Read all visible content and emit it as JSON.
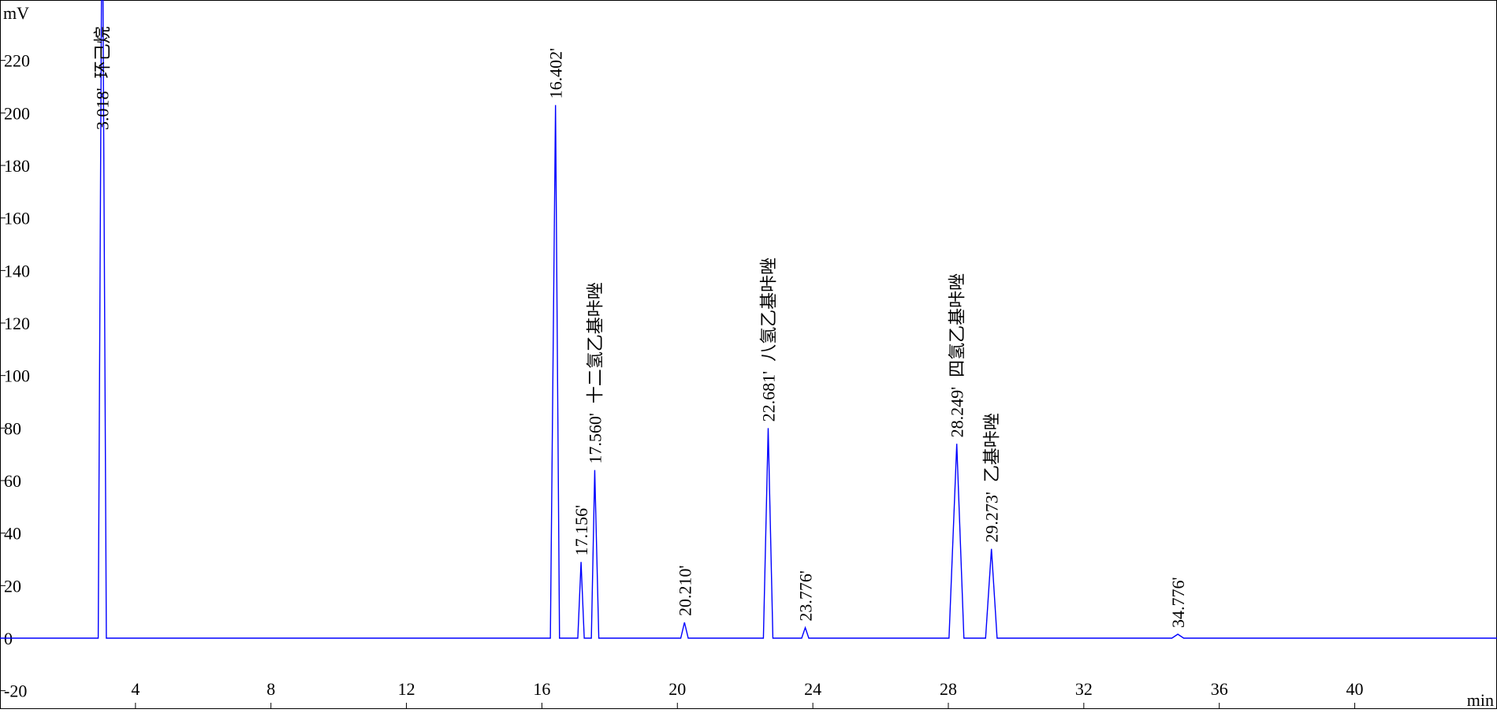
{
  "chart_data": {
    "type": "line",
    "y_label": "mV",
    "x_label": "min",
    "xlim": [
      0,
      44.2
    ],
    "ylim": [
      -27,
      243
    ],
    "xticks": [
      4,
      8,
      12,
      16,
      20,
      24,
      28,
      32,
      36,
      40
    ],
    "yticks": [
      -20,
      0,
      20,
      40,
      60,
      80,
      100,
      120,
      140,
      160,
      180,
      200,
      220
    ],
    "series": [
      {
        "color": "#0000ff",
        "x": [
          0,
          2.9,
          3.018,
          3.14,
          16.25,
          16.402,
          16.52,
          17.06,
          17.156,
          17.25,
          17.46,
          17.56,
          17.68,
          20.1,
          20.21,
          20.32,
          22.54,
          22.681,
          22.82,
          23.67,
          23.776,
          23.88,
          28.02,
          28.249,
          28.46,
          29.1,
          29.273,
          29.44,
          34.6,
          34.776,
          34.95,
          44.2
        ],
        "values": [
          0,
          0,
          300,
          0,
          0,
          203,
          0,
          0,
          29,
          0,
          0,
          64,
          0,
          0,
          6,
          0,
          0,
          80,
          0,
          0,
          4,
          0,
          0,
          74,
          0,
          0,
          34,
          0,
          0,
          1.5,
          0,
          0
        ]
      }
    ],
    "annotations": [
      {
        "x": 3.018,
        "label": "3.018'",
        "name": "环己烷"
      },
      {
        "x": 16.402,
        "label": "16.402'"
      },
      {
        "x": 17.156,
        "label": "17.156'"
      },
      {
        "x": 17.56,
        "label": "17.560'",
        "name": "十二氢乙基咔唑"
      },
      {
        "x": 20.21,
        "label": "20.210'"
      },
      {
        "x": 22.681,
        "label": "22.681'",
        "name": "八氢乙基咔唑"
      },
      {
        "x": 23.776,
        "label": "23.776'"
      },
      {
        "x": 28.249,
        "label": "28.249'",
        "name": "四氢乙基咔唑"
      },
      {
        "x": 29.273,
        "label": "29.273'",
        "name": "乙基咔唑"
      },
      {
        "x": 34.776,
        "label": "34.776'"
      }
    ]
  }
}
